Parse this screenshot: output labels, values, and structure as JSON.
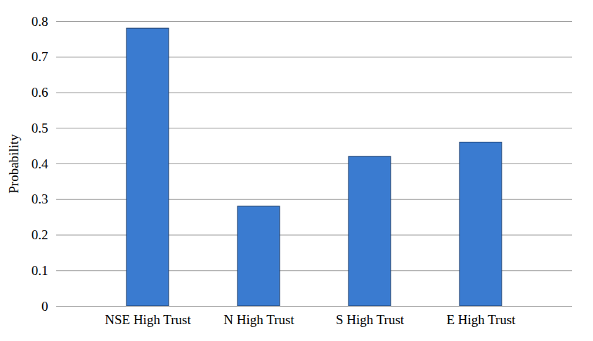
{
  "chart_data": {
    "type": "bar",
    "y_label": "Probability",
    "categories": [
      "NSE High Trust",
      "N High Trust",
      "S High Trust",
      "E High Trust"
    ],
    "values": [
      0.78,
      0.28,
      0.42,
      0.46
    ],
    "color": "#3a7bd0",
    "ylim": [
      0,
      0.8
    ],
    "yticks": [
      0,
      0.1,
      0.2,
      0.3,
      0.4,
      0.5,
      0.6,
      0.7,
      0.8
    ],
    "grid": true
  }
}
